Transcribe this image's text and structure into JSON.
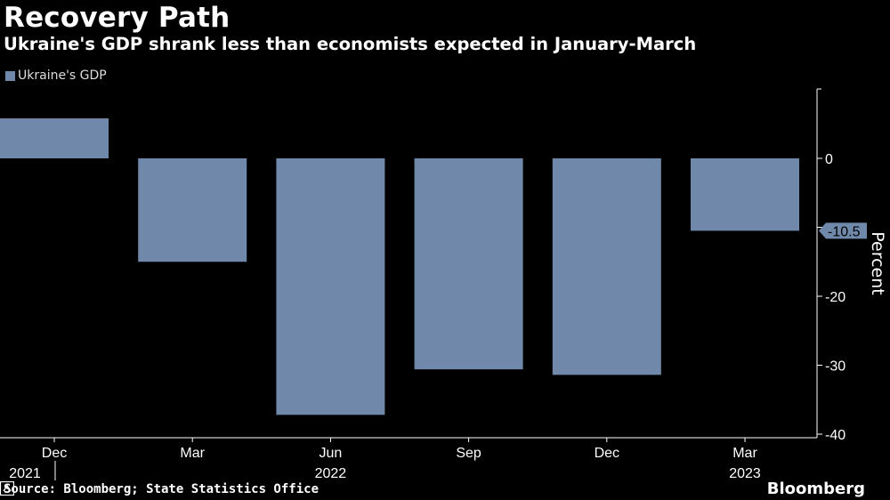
{
  "header": {
    "title": "Recovery Path",
    "subtitle": "Ukraine's GDP shrank less than economists expected in January-March"
  },
  "legend": {
    "label": "Ukraine's GDP",
    "color": "#7089ab"
  },
  "footer": {
    "source": "Source: Bloomberg; State Statistics Office",
    "brand": "Bloomberg"
  },
  "colors": {
    "bar": "#7089ab",
    "background": "#000000",
    "axis": "#ffffff"
  },
  "chart_data": {
    "type": "bar",
    "title": "Recovery Path",
    "ylabel": "Percent",
    "xlabel": "",
    "categories": [
      "Dec 2021",
      "Mar 2022",
      "Jun 2022",
      "Sep 2022",
      "Dec 2022",
      "Mar 2023"
    ],
    "tick_labels": [
      "Dec",
      "Mar",
      "Jun",
      "Sep",
      "Dec",
      "Mar"
    ],
    "year_labels": [
      {
        "label": "2021",
        "index": 0
      },
      {
        "label": "2022",
        "index": 2
      },
      {
        "label": "2023",
        "index": 5
      }
    ],
    "series": [
      {
        "name": "Ukraine's GDP",
        "values": [
          5.8,
          -15.0,
          -37.2,
          -30.6,
          -31.4,
          -10.5
        ]
      }
    ],
    "ylim": [
      -40,
      10
    ],
    "yticks": [
      0,
      -10,
      -20,
      -30,
      -40
    ],
    "ytick_labels": [
      "0",
      "",
      "-20",
      "-30",
      "-40"
    ],
    "annotation": {
      "label": "-10.5",
      "value": -10.5
    },
    "grid": false,
    "legend_position": "top-left"
  }
}
